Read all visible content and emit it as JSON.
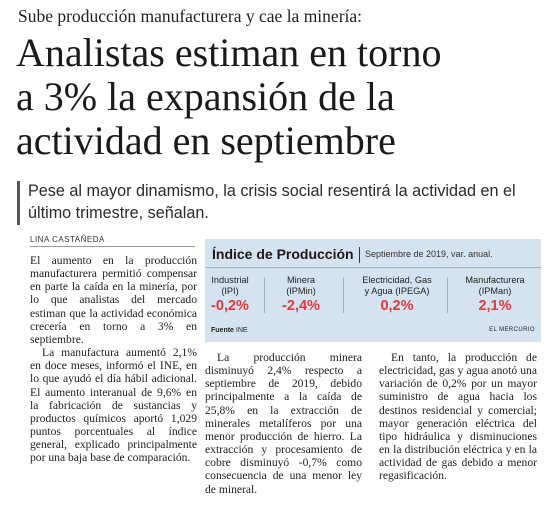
{
  "kicker": "Sube producción manufacturera y cae la minería:",
  "headline": {
    "lines": [
      "Analistas estiman en torno",
      "a 3% la expansión de la",
      "actividad en septiembre"
    ]
  },
  "deck": "Pese al mayor dinamismo, la crisis social resentirá la actividad en el último trimestre, señalan.",
  "byline": "LINA CASTAÑEDA",
  "panel": {
    "title": "Índice de Producción",
    "subtitle": "Septiembre de 2019, var. anual.",
    "value_color": "#e2373c",
    "metrics": [
      {
        "label_1": "Industrial",
        "label_2": "(IPI)",
        "value": "-0,2%"
      },
      {
        "label_1": "Minera",
        "label_2": "(IPMin)",
        "value": "-2,4%"
      },
      {
        "label_1": "Electricidad, Gas",
        "label_2": "y Agua (IPEGA)",
        "value": "0,2%"
      },
      {
        "label_1": "Manufacturera",
        "label_2": "(IPMan)",
        "value": "2,1%"
      }
    ],
    "source_label": "Fuente",
    "source_value": "INE",
    "credit": "EL MERCURIO"
  },
  "body": {
    "col1_p1": "El aumento en la producción manufacturera permitió compensar en parte la caída en la minería, por lo que analistas del mercado estiman que la actividad económica crecería en torno a 3% en septiembre.",
    "col1_p2": "La manufactura aumentó 2,1% en doce meses, informó el INE, en lo que ayudó el día hábil adicional. El aumento interanual de 9,6% en la fabricación de sustancias y productos químicos aportó 1,029 puntos porcentuales al índice general, explicado principalmente por una baja base de comparación.",
    "col2_p1": "La producción minera disminuyó 2,4% respecto a septiembre de 2019, debido principalmente a la caída de 25,8% en la extracción de minerales metalíferos por una menor producción de hierro. La extracción y procesamiento de cobre disminuyó -0,7% como consecuencia de una menor ley de mineral.",
    "col3_p1": "En tanto, la producción de electricidad, gas y agua anotó una variación de 0,2% por un mayor suministro de agua hacia los destinos residencial y comercial; mayor generación eléctrica del tipo hidráulica y disminuciones en la distribución eléctrica y en la actividad de gas debido a menor regasificación."
  }
}
